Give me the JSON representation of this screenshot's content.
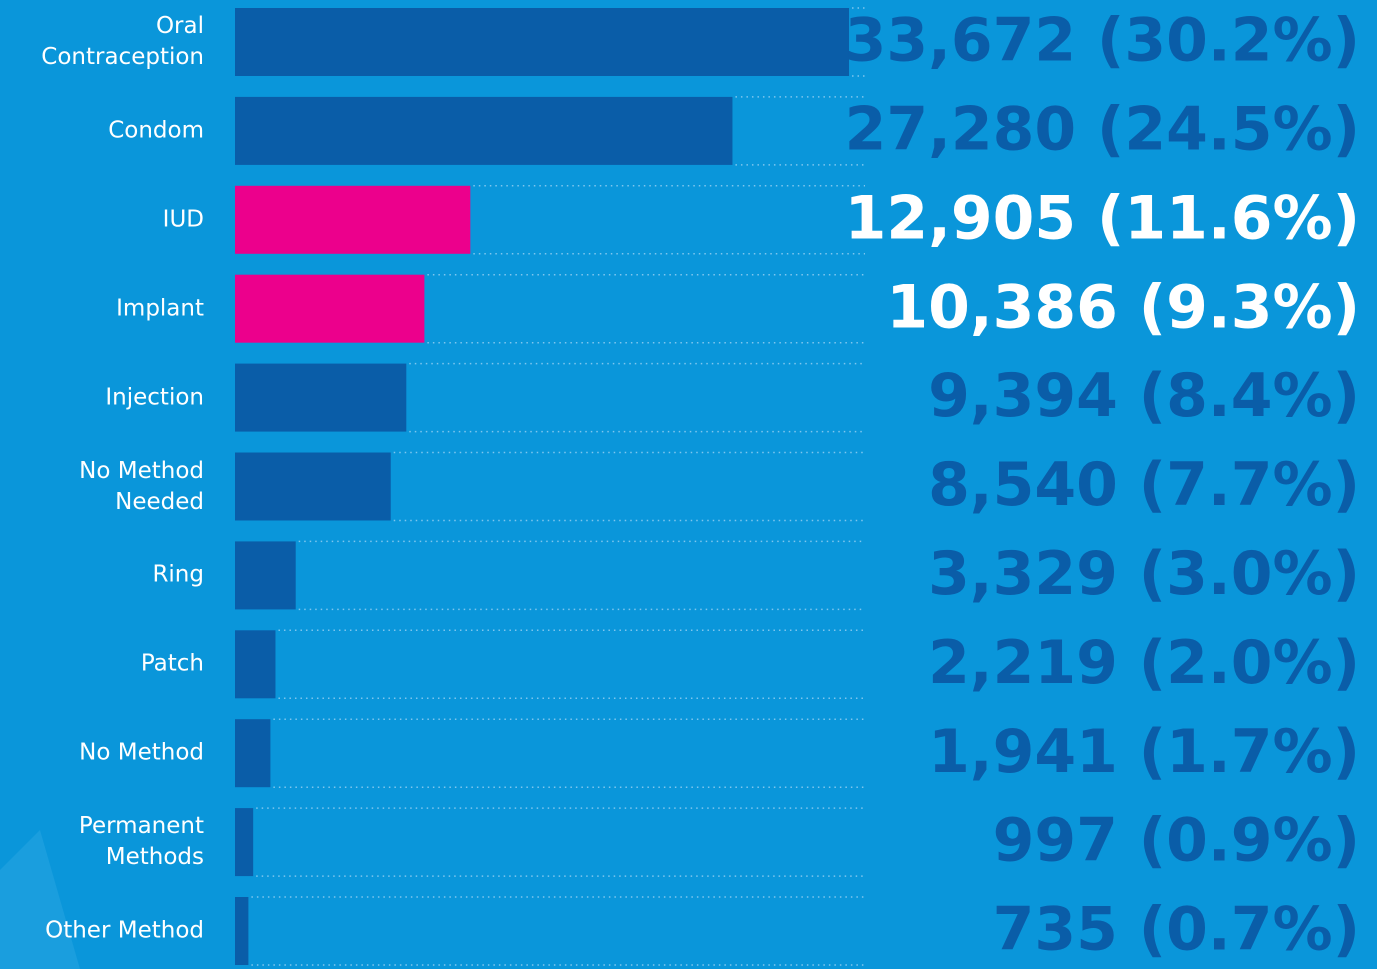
{
  "chart_data": {
    "type": "bar",
    "orientation": "horizontal",
    "categories": [
      "Oral\nContraception",
      "Condom",
      "IUD",
      "Implant",
      "Injection",
      "No Method\nNeeded",
      "Ring",
      "Patch",
      "No Method",
      "Permanent\nMethods",
      "Other Method"
    ],
    "values": [
      33672,
      27280,
      12905,
      10386,
      9394,
      8540,
      3329,
      2219,
      1941,
      997,
      735
    ],
    "value_labels": [
      "33,672 (30.2%)",
      "27,280 (24.5%)",
      "12,905 (11.6%)",
      "10,386 (9.3%)",
      "9,394 (8.4%)",
      "8,540 (7.7%)",
      "3,329 (3.0%)",
      "2,219 (2.0%)",
      "1,941 (1.7%)",
      "997 (0.9%)",
      "735 (0.7%)"
    ],
    "colors": [
      "#0a5da8",
      "#0a5da8",
      "#ec008c",
      "#ec008c",
      "#0a5da8",
      "#0a5da8",
      "#0a5da8",
      "#0a5da8",
      "#0a5da8",
      "#0a5da8",
      "#0a5da8"
    ],
    "label_colors": [
      "#0a5da8",
      "#0a5da8",
      "#ffffff",
      "#ffffff",
      "#0a5da8",
      "#0a5da8",
      "#0a5da8",
      "#0a5da8",
      "#0a5da8",
      "#0a5da8",
      "#0a5da8"
    ],
    "xlim": [
      0,
      34000
    ]
  }
}
